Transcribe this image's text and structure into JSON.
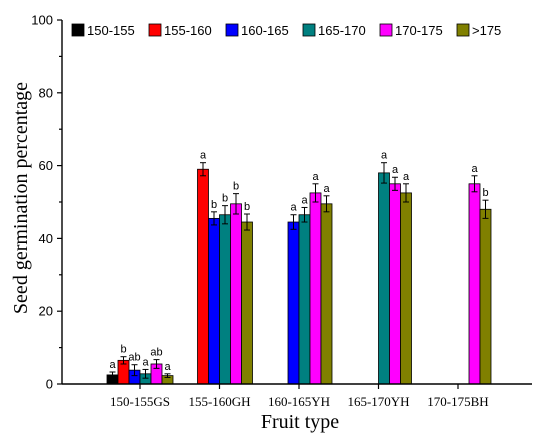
{
  "chart_data": {
    "type": "bar",
    "title": "",
    "xlabel": "Fruit type",
    "ylabel": "Seed germination percentage",
    "ylim": [
      0,
      100
    ],
    "yticks": [
      0,
      20,
      40,
      60,
      80,
      100
    ],
    "grid": false,
    "legend_position": "top",
    "categories": [
      "150-155GS",
      "155-160GH",
      "160-165YH",
      "165-170YH",
      "170-175BH"
    ],
    "series": [
      {
        "name": "150-155",
        "color": "#000000",
        "values": [
          2.5,
          null,
          null,
          null,
          null
        ],
        "errors": [
          0.8,
          null,
          null,
          null,
          null
        ],
        "labels": [
          "a",
          null,
          null,
          null,
          null
        ]
      },
      {
        "name": "155-160",
        "color": "#ff0000",
        "values": [
          6.5,
          59,
          null,
          null,
          null
        ],
        "errors": [
          1.0,
          1.8,
          null,
          null,
          null
        ],
        "labels": [
          "b",
          "a",
          null,
          null,
          null
        ]
      },
      {
        "name": "160-165",
        "color": "#0000ff",
        "values": [
          3.8,
          45.5,
          44.5,
          null,
          null
        ],
        "errors": [
          1.5,
          1.8,
          2.0,
          null,
          null
        ],
        "labels": [
          "ab",
          "b",
          "a",
          null,
          null
        ]
      },
      {
        "name": "165-170",
        "color": "#008080",
        "values": [
          2.8,
          46.5,
          46.5,
          58,
          null
        ],
        "errors": [
          1.2,
          2.5,
          2.0,
          2.8,
          null
        ],
        "labels": [
          "a",
          "b",
          "a",
          "a",
          null
        ]
      },
      {
        "name": "170-175",
        "color": "#ff00ff",
        "values": [
          5.5,
          49.5,
          52.5,
          55,
          55
        ],
        "errors": [
          1.2,
          2.8,
          2.5,
          1.8,
          2.2
        ],
        "labels": [
          "ab",
          "b",
          "a",
          "a",
          "a"
        ]
      },
      {
        "name": ">175",
        "color": "#808000",
        "values": [
          2.3,
          44.5,
          49.5,
          52.5,
          48
        ],
        "errors": [
          0.5,
          2.2,
          2.2,
          2.5,
          2.5
        ],
        "labels": [
          "a",
          "b",
          "a",
          "a",
          "b"
        ]
      }
    ]
  }
}
